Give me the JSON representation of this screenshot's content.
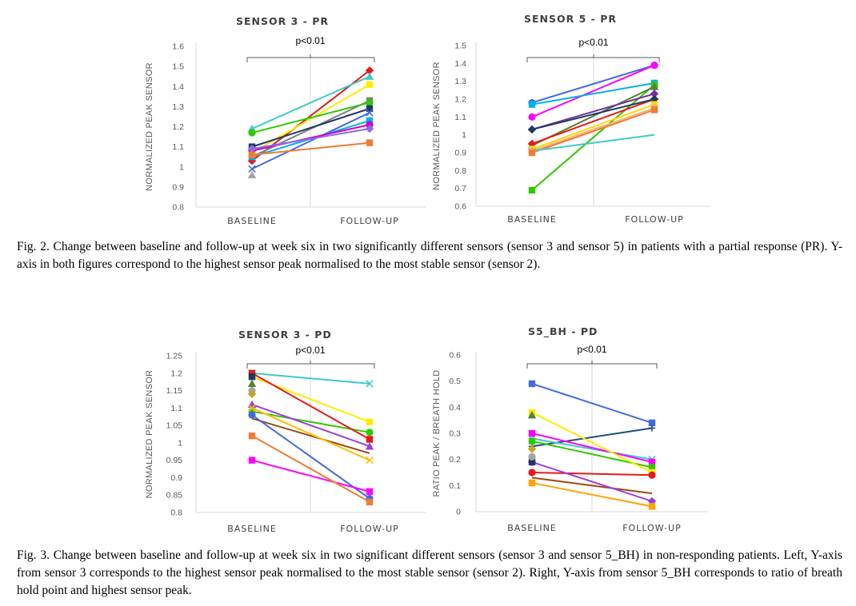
{
  "figures": [
    {
      "caption": "Fig. 2. Change between baseline and follow-up at week six in two significantly different sensors (sensor 3 and sensor 5) in patients with a partial response (PR). Y-axis in both figures correspond to the highest sensor peak normalised to the most stable sensor (sensor 2)."
    },
    {
      "caption": "Fig. 3. Change between baseline and follow-up at week six in two significant different sensors (sensor 3 and sensor 5_BH) in non-responding patients. Left, Y-axis from sensor 3 corresponds to the highest sensor peak normalised to the most stable sensor (sensor 2). Right, Y-axis from sensor 5_BH corresponds to ratio of breath hold point and highest sensor peak."
    }
  ],
  "chart_data": [
    {
      "type": "line",
      "title": "SENSOR 3 - PR",
      "ylabel": "NORMALIZED PEAK SENSOR",
      "categories": [
        "BASELINE",
        "FOLLOW-UP"
      ],
      "ylim": [
        0.8,
        1.6
      ],
      "yticks": [
        "0.8",
        "0.9",
        "1",
        "1.1",
        "1.2",
        "1.3",
        "1.4",
        "1.5",
        "1.6"
      ],
      "annotation": "p<0.01",
      "series": [
        {
          "color": "#E41A1C",
          "marker": "diamond",
          "values": [
            1.03,
            1.48
          ]
        },
        {
          "color": "#3ECBC9",
          "marker": "triangle",
          "values": [
            1.19,
            1.45
          ]
        },
        {
          "color": "#FFEB00",
          "marker": "square",
          "values": [
            1.07,
            1.41
          ]
        },
        {
          "color": "#7F7F7F",
          "marker": "square",
          "values": [
            1.05,
            1.33
          ]
        },
        {
          "color": "#31C800",
          "marker": "circle",
          "values": [
            1.17,
            1.32
          ]
        },
        {
          "color": "#203864",
          "marker": "square",
          "values": [
            1.1,
            1.29
          ]
        },
        {
          "color": "#4169E1",
          "marker": "x",
          "values": [
            0.99,
            1.27
          ]
        },
        {
          "color": "#00B0F0",
          "marker": "square",
          "values": [
            1.05,
            1.23
          ]
        },
        {
          "color": "#CC00CC",
          "marker": "circle",
          "values": [
            1.08,
            1.21
          ]
        },
        {
          "color": "#8E6BE8",
          "marker": "diamond",
          "values": [
            1.09,
            1.19
          ]
        },
        {
          "color": "#ED7D31",
          "marker": "square",
          "values": [
            1.06,
            1.12
          ]
        },
        {
          "color": "#A5A5A5",
          "marker": "triangle",
          "values": [
            0.96,
            null
          ]
        }
      ]
    },
    {
      "type": "line",
      "title": "SENSOR 5 - PR",
      "ylabel": "NORMALIZED PEAK SENSOR",
      "categories": [
        "BASELINE",
        "FOLLOW-UP"
      ],
      "ylim": [
        0.6,
        1.5
      ],
      "yticks": [
        "0.6",
        "0.7",
        "0.8",
        "0.9",
        "1",
        "1.1",
        "1.2",
        "1.3",
        "1.4",
        "1.5"
      ],
      "annotation": "p<0.01",
      "series": [
        {
          "color": "#4169E1",
          "marker": "circle",
          "values": [
            1.18,
            1.39
          ]
        },
        {
          "color": "#FF00FF",
          "marker": "circle",
          "values": [
            1.1,
            1.39
          ]
        },
        {
          "color": "#00B0F0",
          "marker": "square",
          "values": [
            1.17,
            1.29
          ]
        },
        {
          "color": "#31C800",
          "marker": "square",
          "values": [
            0.69,
            1.28
          ]
        },
        {
          "color": "#548235",
          "marker": "triangle",
          "values": [
            0.94,
            1.27
          ]
        },
        {
          "color": "#7030A0",
          "marker": "diamond",
          "values": [
            1.03,
            1.23
          ]
        },
        {
          "color": "#E41A1C",
          "marker": "diamond",
          "values": [
            0.95,
            1.2
          ]
        },
        {
          "color": "#203864",
          "marker": "diamond",
          "values": [
            1.03,
            1.2
          ]
        },
        {
          "color": "#FFD700",
          "marker": "square",
          "values": [
            0.92,
            1.17
          ]
        },
        {
          "color": "#F4B183",
          "marker": "square",
          "values": [
            0.91,
            1.15
          ]
        },
        {
          "color": "#ED7D31",
          "marker": "square",
          "values": [
            0.9,
            1.14
          ]
        },
        {
          "color": "#3ECBC9",
          "marker": "none",
          "values": [
            0.91,
            1.0
          ]
        }
      ]
    },
    {
      "type": "line",
      "title": "SENSOR 3 - PD",
      "ylabel": "NORMALIZED PEAK SENSOR",
      "categories": [
        "BASELINE",
        "FOLLOW-UP"
      ],
      "ylim": [
        0.8,
        1.25
      ],
      "yticks": [
        "0.8",
        "0.85",
        "0.9",
        "0.95",
        "1",
        "1.05",
        "1.1",
        "1.15",
        "1.2",
        "1.25"
      ],
      "annotation": "p<0.01",
      "series": [
        {
          "color": "#3ECBC9",
          "marker": "x",
          "values": [
            1.2,
            1.17
          ]
        },
        {
          "color": "#FFEB00",
          "marker": "square",
          "values": [
            1.19,
            1.06
          ]
        },
        {
          "color": "#31C800",
          "marker": "circle",
          "values": [
            1.09,
            1.03
          ]
        },
        {
          "color": "#E41A1C",
          "marker": "square",
          "values": [
            1.2,
            1.01
          ]
        },
        {
          "color": "#9E3FD8",
          "marker": "triangle",
          "values": [
            1.11,
            0.99
          ]
        },
        {
          "color": "#9E480E",
          "marker": "none",
          "values": [
            1.07,
            0.97
          ]
        },
        {
          "color": "#FFC000",
          "marker": "x",
          "values": [
            1.1,
            0.95
          ]
        },
        {
          "color": "#4169E1",
          "marker": "circle",
          "values": [
            1.08,
            0.84
          ]
        },
        {
          "color": "#FF00FF",
          "marker": "square",
          "values": [
            0.95,
            0.86
          ]
        },
        {
          "color": "#ED7D31",
          "marker": "square",
          "values": [
            1.02,
            0.83
          ]
        },
        {
          "color": "#203864",
          "marker": "square",
          "values": [
            1.19,
            null
          ]
        },
        {
          "color": "#548235",
          "marker": "triangle",
          "values": [
            1.17,
            null
          ]
        },
        {
          "color": "#A5A5A5",
          "marker": "circle",
          "values": [
            1.15,
            null
          ]
        },
        {
          "color": "#C9A227",
          "marker": "diamond",
          "values": [
            1.14,
            null
          ]
        }
      ]
    },
    {
      "type": "line",
      "title": "S5_BH - PD",
      "ylabel": "RATIO PEAK / BREATH HOLD",
      "categories": [
        "BASELINE",
        "FOLLOW-UP"
      ],
      "ylim": [
        0,
        0.6
      ],
      "yticks": [
        "0",
        "0.1",
        "0.2",
        "0.3",
        "0.4",
        "0.5",
        "0.6"
      ],
      "annotation": "p<0.01",
      "series": [
        {
          "color": "#4169E1",
          "marker": "square",
          "values": [
            0.49,
            0.34
          ]
        },
        {
          "color": "#1F4E79",
          "marker": "plus",
          "values": [
            0.25,
            0.32
          ]
        },
        {
          "color": "#3ECBC9",
          "marker": "x",
          "values": [
            0.28,
            0.2
          ]
        },
        {
          "color": "#FF00FF",
          "marker": "square",
          "values": [
            0.3,
            0.19
          ]
        },
        {
          "color": "#31C800",
          "marker": "square",
          "values": [
            0.27,
            0.17
          ]
        },
        {
          "color": "#FFEB00",
          "marker": "square",
          "values": [
            0.38,
            0.15
          ]
        },
        {
          "color": "#E41A1C",
          "marker": "circle",
          "values": [
            0.15,
            0.14
          ]
        },
        {
          "color": "#9E480E",
          "marker": "none",
          "values": [
            0.13,
            0.07
          ]
        },
        {
          "color": "#9E3FD8",
          "marker": "diamond",
          "values": [
            0.19,
            0.04
          ]
        },
        {
          "color": "#FFA500",
          "marker": "square",
          "values": [
            0.11,
            0.02
          ]
        },
        {
          "color": "#548235",
          "marker": "triangle",
          "values": [
            0.37,
            null
          ]
        },
        {
          "color": "#203864",
          "marker": "square",
          "values": [
            0.19,
            null
          ]
        },
        {
          "color": "#A5A5A5",
          "marker": "circle",
          "values": [
            0.21,
            null
          ]
        },
        {
          "color": "#C9A227",
          "marker": "diamond",
          "values": [
            0.24,
            null
          ]
        }
      ]
    }
  ]
}
